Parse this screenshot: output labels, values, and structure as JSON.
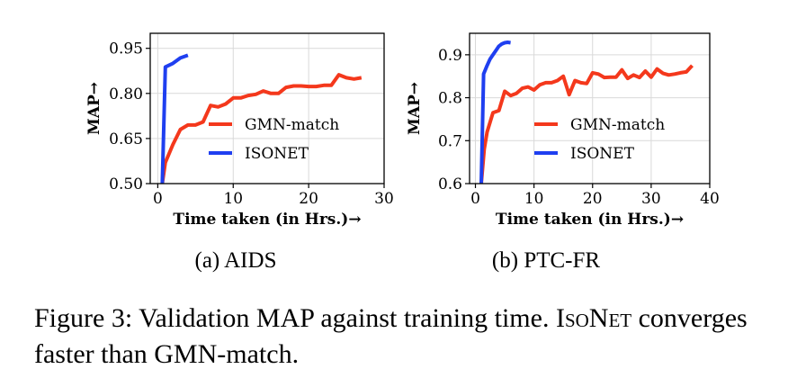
{
  "figure": {
    "caption_prefix": "Figure 3: Validation MAP against training time. ",
    "caption_method": "IsoNet",
    "caption_suffix": " converges faster than GMN-match."
  },
  "colors": {
    "gmn": "#f4381c",
    "isonet": "#1f3ff0",
    "grid": "#d9d9d9"
  },
  "chart_data": [
    {
      "type": "line",
      "subcaption": "(a) AIDS",
      "xlabel": "Time taken (in Hrs.)→",
      "ylabel": "MAP→",
      "xlim": [
        -1,
        30
      ],
      "ylim": [
        0.5,
        1.0
      ],
      "xticks": [
        0,
        10,
        20,
        30
      ],
      "yticks": [
        0.5,
        0.65,
        0.8,
        0.95
      ],
      "ytick_labels": [
        "0.50",
        "0.65",
        "0.80",
        "0.95"
      ],
      "grid": true,
      "legend_position": "center-right",
      "series": [
        {
          "name": "GMN-match",
          "color_key": "gmn",
          "x": [
            0.6,
            1.0,
            2.0,
            3.0,
            4.0,
            5.0,
            6.0,
            7.0,
            8.0,
            9.0,
            10.0,
            11.0,
            12.0,
            13.0,
            14.0,
            15.0,
            16.0,
            17.0,
            18.0,
            19.0,
            20.0,
            21.0,
            22.0,
            23.0,
            24.0,
            25.0,
            26.0,
            27.0
          ],
          "y": [
            0.5,
            0.57,
            0.63,
            0.68,
            0.695,
            0.695,
            0.705,
            0.76,
            0.755,
            0.765,
            0.785,
            0.785,
            0.793,
            0.797,
            0.808,
            0.8,
            0.8,
            0.82,
            0.825,
            0.825,
            0.823,
            0.823,
            0.827,
            0.827,
            0.862,
            0.852,
            0.848,
            0.852
          ]
        },
        {
          "name": "ISONET",
          "color_key": "isonet",
          "x": [
            0.6,
            1.0,
            2.0,
            3.0,
            4.0
          ],
          "y": [
            0.5,
            0.888,
            0.9,
            0.918,
            0.927
          ]
        }
      ]
    },
    {
      "type": "line",
      "subcaption": "(b) PTC-FR",
      "xlabel": "Time taken (in Hrs.)→",
      "ylabel": "MAP→",
      "xlim": [
        -1,
        40
      ],
      "ylim": [
        0.6,
        0.95
      ],
      "xticks": [
        0,
        10,
        20,
        30,
        40
      ],
      "yticks": [
        0.6,
        0.7,
        0.8,
        0.9
      ],
      "ytick_labels": [
        "0.6",
        "0.7",
        "0.8",
        "0.9"
      ],
      "grid": true,
      "legend_position": "center-right",
      "series": [
        {
          "name": "GMN-match",
          "color_key": "gmn",
          "x": [
            1.0,
            1.5,
            2.0,
            3.0,
            4.0,
            5.0,
            6.0,
            7.0,
            8.0,
            9.0,
            10.0,
            11.0,
            12.0,
            13.0,
            14.0,
            15.0,
            16.0,
            17.0,
            18.0,
            19.0,
            20.0,
            21.0,
            22.0,
            23.0,
            24.0,
            25.0,
            26.0,
            27.0,
            28.0,
            29.0,
            30.0,
            31.0,
            32.0,
            33.0,
            34.0,
            35.0,
            36.0,
            37.0
          ],
          "y": [
            0.6,
            0.68,
            0.72,
            0.765,
            0.77,
            0.815,
            0.805,
            0.81,
            0.822,
            0.825,
            0.818,
            0.83,
            0.835,
            0.835,
            0.84,
            0.85,
            0.807,
            0.84,
            0.835,
            0.833,
            0.858,
            0.855,
            0.847,
            0.848,
            0.848,
            0.865,
            0.845,
            0.853,
            0.847,
            0.862,
            0.848,
            0.867,
            0.857,
            0.853,
            0.855,
            0.858,
            0.86,
            0.875
          ]
        },
        {
          "name": "ISONET",
          "color_key": "isonet",
          "x": [
            1.0,
            1.4,
            2.0,
            2.5,
            3.0,
            3.5,
            4.0,
            4.5,
            5.0,
            5.5,
            6.0
          ],
          "y": [
            0.6,
            0.855,
            0.875,
            0.89,
            0.9,
            0.91,
            0.92,
            0.925,
            0.928,
            0.929,
            0.928
          ]
        }
      ]
    }
  ]
}
